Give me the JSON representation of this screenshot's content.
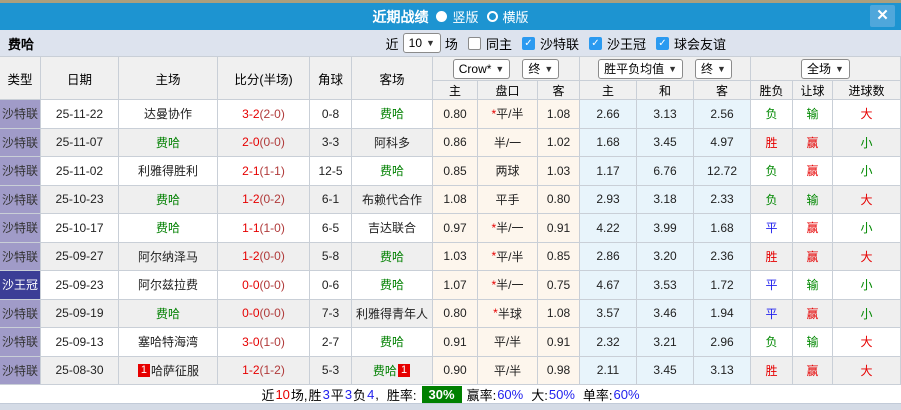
{
  "titlebar": {
    "title": "近期战绩",
    "view_vertical": "竖版",
    "view_horizontal": "横版",
    "close_label": "✕"
  },
  "filter": {
    "team_name": "费哈",
    "near_label": "近",
    "rounds_value": "10",
    "rounds_unit": "场",
    "same_home_label": "同主",
    "league_saudi": "沙特联",
    "cup_saudi": "沙王冠",
    "club_friendly": "球会友谊",
    "check_glyph": "✓"
  },
  "table": {
    "columns": {
      "type": "类型",
      "date": "日期",
      "home": "主场",
      "score": "比分(半场)",
      "corner": "角球",
      "away": "客场",
      "ah_home": "主",
      "ah_line": "盘口",
      "ah_away": "客",
      "odds_home": "主",
      "odds_draw": "和",
      "odds_away": "客",
      "result_wdl": "胜负",
      "result_ah": "让球",
      "result_goals": "进球数"
    },
    "selects": {
      "company": "Crow*",
      "ah_time": "终",
      "wdl_mode": "胜平负均值",
      "wdl_time": "终",
      "scope": "全场"
    },
    "chevron": "▼"
  },
  "rows": [
    {
      "type": "沙特联",
      "date": "25-11-22",
      "home": "达曼协作",
      "score": "3-2",
      "half": "(2-0)",
      "corner": "0-8",
      "away": "费哈",
      "away_self": "1",
      "ah_home": "0.80",
      "ah_star": "*",
      "ah_line": "平/半",
      "ah_away": "1.08",
      "odds_home": "2.66",
      "odds_draw": "3.13",
      "odds_away": "2.56",
      "res_wdl": "负",
      "res_ah": "输",
      "res_goals": "大"
    },
    {
      "type": "沙特联",
      "date": "25-11-07",
      "home": "费哈",
      "home_self": "1",
      "score": "2-0",
      "half": "(0-0)",
      "corner": "3-3",
      "away": "阿科多",
      "ah_home": "0.86",
      "ah_line": "半/一",
      "ah_away": "1.02",
      "odds_home": "1.68",
      "odds_draw": "3.45",
      "odds_away": "4.97",
      "res_wdl": "胜",
      "res_ah": "赢",
      "res_goals": "小"
    },
    {
      "type": "沙特联",
      "date": "25-11-02",
      "home": "利雅得胜利",
      "score": "2-1",
      "half": "(1-1)",
      "corner": "12-5",
      "away": "费哈",
      "away_self": "1",
      "ah_home": "0.85",
      "ah_line": "两球",
      "ah_away": "1.03",
      "odds_home": "1.17",
      "odds_draw": "6.76",
      "odds_away": "12.72",
      "res_wdl": "负",
      "res_ah": "赢",
      "res_goals": "小"
    },
    {
      "type": "沙特联",
      "date": "25-10-23",
      "home": "费哈",
      "home_self": "1",
      "score": "1-2",
      "half": "(0-2)",
      "corner": "6-1",
      "away": "布赖代合作",
      "ah_home": "1.08",
      "ah_line": "平手",
      "ah_away": "0.80",
      "odds_home": "2.93",
      "odds_draw": "3.18",
      "odds_away": "2.33",
      "res_wdl": "负",
      "res_ah": "输",
      "res_goals": "大"
    },
    {
      "type": "沙特联",
      "date": "25-10-17",
      "home": "费哈",
      "home_self": "1",
      "score": "1-1",
      "half": "(1-0)",
      "corner": "6-5",
      "away": "吉达联合",
      "ah_home": "0.97",
      "ah_star": "*",
      "ah_line": "半/一",
      "ah_away": "0.91",
      "odds_home": "4.22",
      "odds_draw": "3.99",
      "odds_away": "1.68",
      "res_wdl": "平",
      "res_ah": "赢",
      "res_goals": "小"
    },
    {
      "type": "沙特联",
      "date": "25-09-27",
      "home": "阿尔纳泽马",
      "score": "1-2",
      "half": "(0-0)",
      "corner": "5-8",
      "away": "费哈",
      "away_self": "1",
      "ah_home": "1.03",
      "ah_star": "*",
      "ah_line": "平/半",
      "ah_away": "0.85",
      "odds_home": "2.86",
      "odds_draw": "3.20",
      "odds_away": "2.36",
      "res_wdl": "胜",
      "res_ah": "赢",
      "res_goals": "大"
    },
    {
      "type": "沙王冠",
      "date": "25-09-23",
      "home": "阿尔兹拉费",
      "score": "0-0",
      "half": "(0-0)",
      "corner": "0-6",
      "away": "费哈",
      "away_self": "1",
      "ah_home": "1.07",
      "ah_star": "*",
      "ah_line": "半/一",
      "ah_away": "0.75",
      "odds_home": "4.67",
      "odds_draw": "3.53",
      "odds_away": "1.72",
      "res_wdl": "平",
      "res_ah": "输",
      "res_goals": "小"
    },
    {
      "type": "沙特联",
      "date": "25-09-19",
      "home": "费哈",
      "home_self": "1",
      "score": "0-0",
      "half": "(0-0)",
      "corner": "7-3",
      "away": "利雅得青年人",
      "ah_home": "0.80",
      "ah_star": "*",
      "ah_line": "半球",
      "ah_away": "1.08",
      "odds_home": "3.57",
      "odds_draw": "3.46",
      "odds_away": "1.94",
      "res_wdl": "平",
      "res_ah": "赢",
      "res_goals": "小"
    },
    {
      "type": "沙特联",
      "date": "25-09-13",
      "home": "塞哈特海湾",
      "score": "3-0",
      "half": "(1-0)",
      "corner": "2-7",
      "away": "费哈",
      "away_self": "1",
      "ah_home": "0.91",
      "ah_line": "平/半",
      "ah_away": "0.91",
      "odds_home": "2.32",
      "odds_draw": "3.21",
      "odds_away": "2.96",
      "res_wdl": "负",
      "res_ah": "输",
      "res_goals": "大"
    },
    {
      "type": "沙特联",
      "date": "25-08-30",
      "home": "哈萨征服",
      "home_badge": "1",
      "score": "1-2",
      "half": "(1-2)",
      "corner": "5-3",
      "away": "费哈",
      "away_self": "1",
      "away_badge": "1",
      "ah_home": "0.90",
      "ah_line": "平/半",
      "ah_away": "0.98",
      "odds_home": "2.11",
      "odds_draw": "3.45",
      "odds_away": "3.13",
      "res_wdl": "胜",
      "res_ah": "赢",
      "res_goals": "大"
    }
  ],
  "footer": {
    "prefix": "近",
    "count": "10",
    "unit": "场,",
    "win_label": "胜",
    "win_count": "3",
    "draw_label": "平",
    "draw_count": "3",
    "lose_label": "负",
    "lose_count": "4",
    "sep": ",",
    "winrate_label": "胜率:",
    "winrate_value": "30%",
    "ah_rate_label": "赢率:",
    "ah_rate_value": "60%",
    "big_label": "大:",
    "big_value": "50%",
    "single_label": "单率:",
    "single_value": "60%"
  },
  "colors": {
    "accent_blue": "#1d94d1",
    "self_team_green": "#008000",
    "win_red": "#e60000",
    "draw_blue": "#2222ee",
    "lose_green": "#008800",
    "league_purple": "#a09bc8",
    "cup_indigo": "#3b3e96",
    "winrate_badge_bg": "#008000"
  }
}
